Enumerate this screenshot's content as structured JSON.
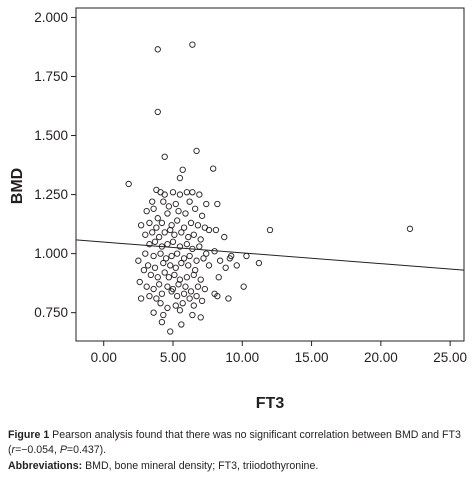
{
  "chart_data": {
    "type": "scatter",
    "xlabel": "FT3",
    "ylabel": "BMD",
    "xlim": [
      -2,
      26
    ],
    "ylim": [
      0.63,
      2.04
    ],
    "x_ticks": [
      "0.00",
      "5.00",
      "10.00",
      "15.00",
      "20.00",
      "25.00"
    ],
    "y_ticks": [
      "0.750",
      "1.000",
      "1.250",
      "1.500",
      "1.750",
      "2.000"
    ],
    "grid": false,
    "regression_line": {
      "x": [
        -2,
        26
      ],
      "y": [
        1.058,
        0.93
      ]
    },
    "points": [
      [
        3.9,
        1.865
      ],
      [
        6.4,
        1.885
      ],
      [
        3.9,
        1.6
      ],
      [
        4.4,
        1.41
      ],
      [
        6.7,
        1.435
      ],
      [
        5.7,
        1.355
      ],
      [
        5.5,
        1.32
      ],
      [
        7.9,
        1.36
      ],
      [
        1.8,
        1.295
      ],
      [
        3.8,
        1.27
      ],
      [
        4.1,
        1.26
      ],
      [
        4.4,
        1.25
      ],
      [
        5.0,
        1.26
      ],
      [
        5.5,
        1.25
      ],
      [
        6.0,
        1.26
      ],
      [
        6.4,
        1.26
      ],
      [
        6.9,
        1.25
      ],
      [
        3.5,
        1.22
      ],
      [
        4.3,
        1.22
      ],
      [
        4.7,
        1.2
      ],
      [
        5.2,
        1.21
      ],
      [
        6.2,
        1.22
      ],
      [
        7.4,
        1.21
      ],
      [
        8.2,
        1.21
      ],
      [
        3.1,
        1.18
      ],
      [
        3.6,
        1.19
      ],
      [
        3.9,
        1.15
      ],
      [
        4.6,
        1.17
      ],
      [
        5.4,
        1.18
      ],
      [
        5.9,
        1.17
      ],
      [
        6.6,
        1.19
      ],
      [
        7.1,
        1.16
      ],
      [
        2.7,
        1.12
      ],
      [
        3.3,
        1.13
      ],
      [
        3.8,
        1.11
      ],
      [
        4.2,
        1.13
      ],
      [
        4.9,
        1.12
      ],
      [
        5.3,
        1.14
      ],
      [
        5.8,
        1.11
      ],
      [
        6.3,
        1.13
      ],
      [
        6.8,
        1.12
      ],
      [
        7.3,
        1.11
      ],
      [
        7.6,
        1.1
      ],
      [
        8.1,
        1.1
      ],
      [
        3.0,
        1.08
      ],
      [
        3.5,
        1.09
      ],
      [
        4.0,
        1.07
      ],
      [
        4.4,
        1.09
      ],
      [
        4.8,
        1.1
      ],
      [
        5.1,
        1.08
      ],
      [
        5.6,
        1.09
      ],
      [
        6.1,
        1.07
      ],
      [
        6.5,
        1.08
      ],
      [
        7.0,
        1.06
      ],
      [
        8.7,
        1.07
      ],
      [
        12.0,
        1.1
      ],
      [
        22.1,
        1.105
      ],
      [
        3.3,
        1.04
      ],
      [
        3.7,
        1.05
      ],
      [
        4.2,
        1.03
      ],
      [
        4.6,
        1.04
      ],
      [
        5.0,
        1.05
      ],
      [
        5.5,
        1.03
      ],
      [
        6.0,
        1.04
      ],
      [
        6.4,
        1.02
      ],
      [
        6.9,
        1.03
      ],
      [
        7.4,
        1.0
      ],
      [
        8.0,
        1.01
      ],
      [
        9.2,
        0.99
      ],
      [
        3.0,
        1.0
      ],
      [
        3.6,
        0.99
      ],
      [
        4.1,
        1.0
      ],
      [
        4.5,
        0.98
      ],
      [
        4.9,
        0.99
      ],
      [
        5.3,
        1.0
      ],
      [
        5.8,
        0.98
      ],
      [
        6.2,
        0.99
      ],
      [
        6.7,
        0.97
      ],
      [
        7.2,
        0.98
      ],
      [
        8.4,
        0.97
      ],
      [
        9.1,
        0.98
      ],
      [
        10.3,
        0.99
      ],
      [
        11.2,
        0.96
      ],
      [
        2.5,
        0.97
      ],
      [
        3.2,
        0.95
      ],
      [
        3.7,
        0.94
      ],
      [
        4.3,
        0.96
      ],
      [
        4.8,
        0.95
      ],
      [
        5.2,
        0.94
      ],
      [
        5.6,
        0.96
      ],
      [
        6.1,
        0.95
      ],
      [
        6.6,
        0.93
      ],
      [
        7.6,
        0.95
      ],
      [
        8.8,
        0.94
      ],
      [
        9.6,
        0.95
      ],
      [
        2.9,
        0.93
      ],
      [
        3.4,
        0.91
      ],
      [
        3.9,
        0.9
      ],
      [
        4.4,
        0.92
      ],
      [
        4.7,
        0.9
      ],
      [
        5.1,
        0.91
      ],
      [
        5.5,
        0.89
      ],
      [
        6.0,
        0.9
      ],
      [
        6.5,
        0.91
      ],
      [
        7.0,
        0.89
      ],
      [
        8.3,
        0.9
      ],
      [
        2.6,
        0.88
      ],
      [
        3.1,
        0.86
      ],
      [
        3.6,
        0.85
      ],
      [
        4.0,
        0.87
      ],
      [
        4.6,
        0.86
      ],
      [
        5.0,
        0.85
      ],
      [
        5.4,
        0.87
      ],
      [
        5.9,
        0.86
      ],
      [
        6.3,
        0.84
      ],
      [
        6.8,
        0.86
      ],
      [
        7.3,
        0.85
      ],
      [
        10.1,
        0.86
      ],
      [
        3.3,
        0.82
      ],
      [
        3.8,
        0.81
      ],
      [
        4.2,
        0.83
      ],
      [
        4.9,
        0.84
      ],
      [
        5.3,
        0.82
      ],
      [
        5.8,
        0.83
      ],
      [
        6.2,
        0.81
      ],
      [
        6.7,
        0.82
      ],
      [
        8.0,
        0.83
      ],
      [
        9.0,
        0.81
      ],
      [
        2.7,
        0.81
      ],
      [
        4.1,
        0.79
      ],
      [
        4.6,
        0.77
      ],
      [
        5.2,
        0.78
      ],
      [
        5.7,
        0.79
      ],
      [
        6.5,
        0.78
      ],
      [
        7.1,
        0.8
      ],
      [
        8.2,
        0.82
      ],
      [
        3.6,
        0.75
      ],
      [
        4.3,
        0.74
      ],
      [
        5.5,
        0.76
      ],
      [
        6.4,
        0.74
      ],
      [
        7.0,
        0.73
      ],
      [
        4.2,
        0.71
      ],
      [
        4.8,
        0.67
      ],
      [
        5.6,
        0.7
      ]
    ]
  },
  "caption": {
    "figure_label": "Figure 1",
    "line1": " Pearson analysis found that there was no significant correlation between BMD and FT3 (",
    "stat_r": "r",
    "stat_r_value": "=−0.054, ",
    "stat_p": "P",
    "stat_p_value": "=0.437).",
    "abbrev_label": "Abbreviations:",
    "abbrev_text": " BMD, bone mineral density; FT3, triiodothyronine."
  }
}
